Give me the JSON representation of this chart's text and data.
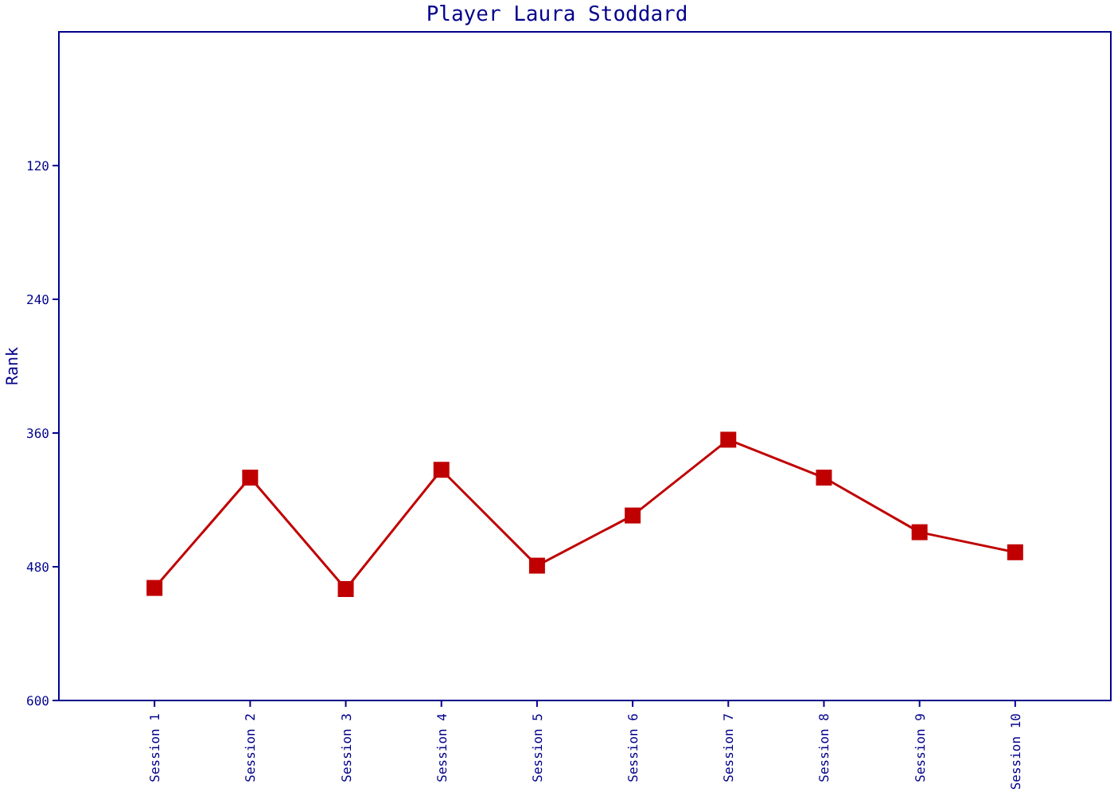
{
  "chart_data": {
    "type": "line",
    "title": "Player Laura Stoddard",
    "ylabel": "Rank",
    "categories": [
      "Session 1",
      "Session 2",
      "Session 3",
      "Session 4",
      "Session 5",
      "Session 6",
      "Session 7",
      "Session 8",
      "Session 9",
      "Session 10"
    ],
    "series": [
      {
        "color": "#c00000",
        "values": [
          499,
          400,
          500,
          393,
          479,
          434,
          366,
          400,
          449,
          467
        ]
      }
    ],
    "ylim": [
      600,
      0
    ],
    "yticks": [
      120,
      240,
      360,
      480,
      600
    ],
    "grid": false,
    "marker": "square",
    "line_style": "solid"
  }
}
